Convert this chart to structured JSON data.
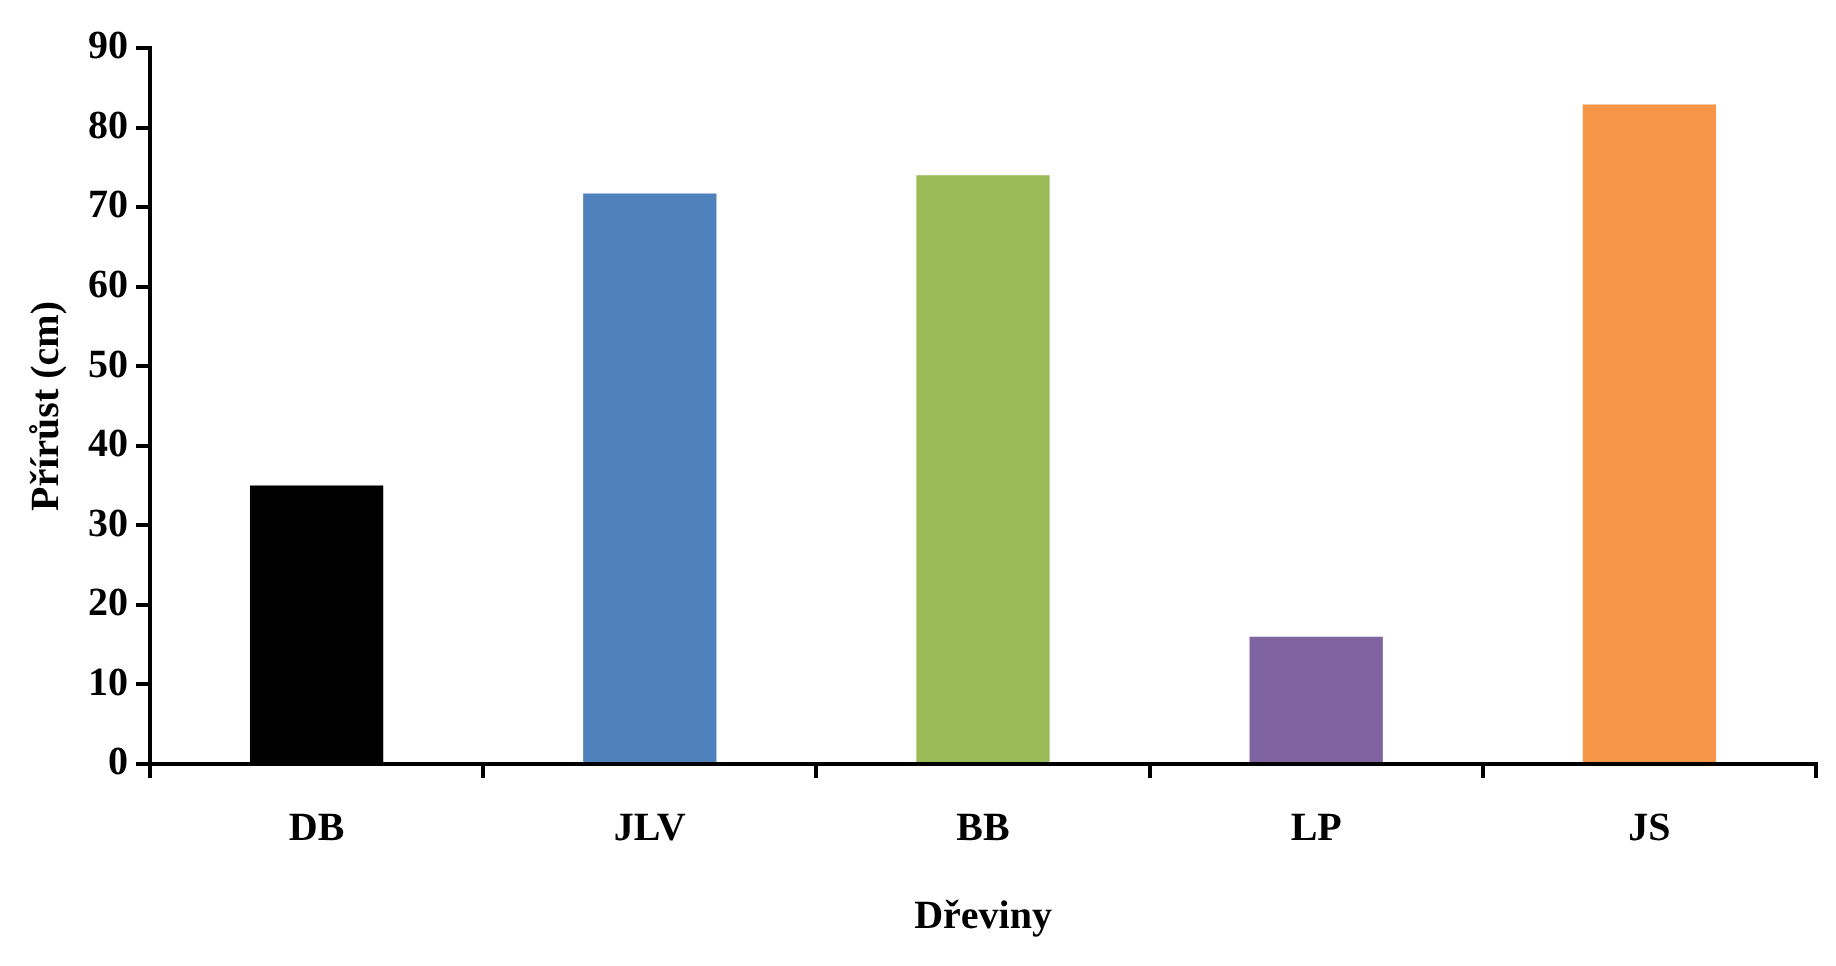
{
  "chart_data": {
    "type": "bar",
    "xlabel": "Dřeviny",
    "ylabel": "Přírůst (cm)",
    "categories": [
      "DB",
      "JLV",
      "BB",
      "LP",
      "JS"
    ],
    "values": [
      35,
      71.7,
      74,
      16,
      82.9
    ],
    "colors": [
      "#000000",
      "#4f81bd",
      "#9bbb59",
      "#8064a2",
      "#f79646"
    ],
    "ylim": [
      0,
      90
    ],
    "yticks": [
      0,
      10,
      20,
      30,
      40,
      50,
      60,
      70,
      80,
      90
    ],
    "grid": false
  }
}
